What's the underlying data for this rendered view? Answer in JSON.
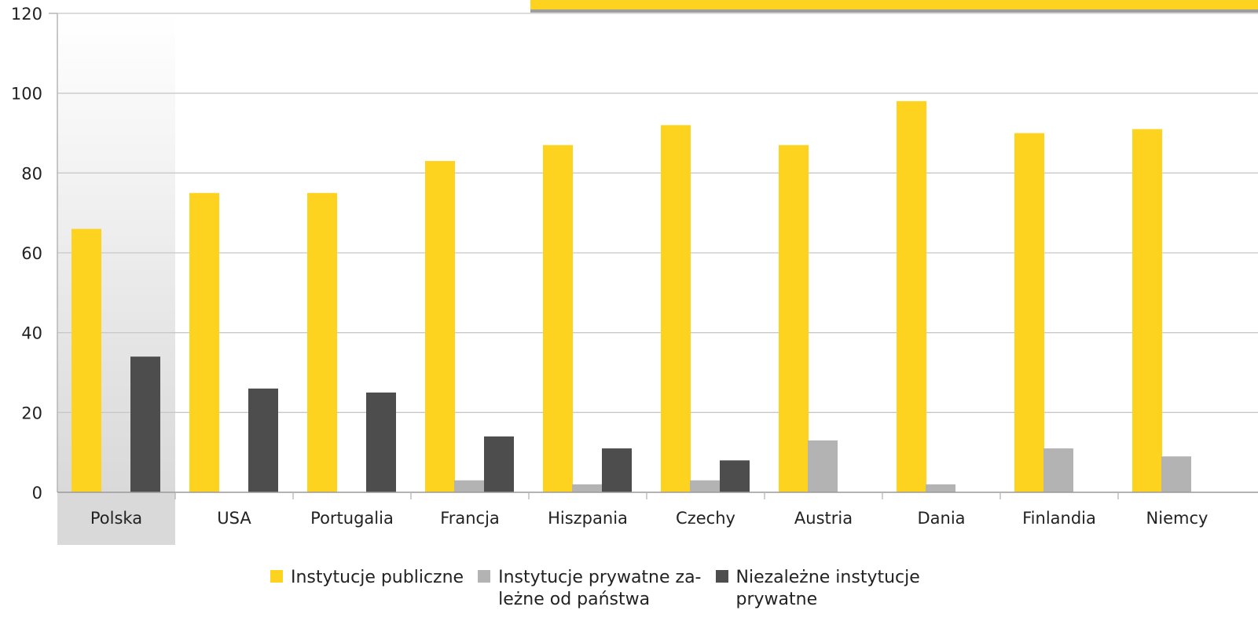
{
  "colors": {
    "series_public": "#FED320",
    "series_private_dependent": "#B3B3B3",
    "series_private_independent": "#4D4D4D",
    "highlight_band": "#D9D9D9",
    "banner": "#FED320",
    "gridline": "#C8C8C8"
  },
  "chart_data": {
    "type": "bar",
    "categories": [
      "Polska",
      "USA",
      "Portugalia",
      "Francja",
      "Hiszpania",
      "Czechy",
      "Austria",
      "Dania",
      "Finlandia",
      "Niemcy"
    ],
    "highlighted_category": "Polska",
    "series": [
      {
        "name": "Instytucje publiczne",
        "values": [
          66,
          75,
          75,
          83,
          87,
          92,
          87,
          98,
          90,
          91
        ]
      },
      {
        "name": "Instytucje prywatne za-\nleżne od państwa",
        "values": [
          0,
          0,
          0,
          3,
          2,
          3,
          13,
          2,
          11,
          9
        ]
      },
      {
        "name": "Niezależne instytucje\nprywatne",
        "values": [
          34,
          26,
          25,
          14,
          11,
          8,
          0,
          0,
          0,
          0
        ]
      }
    ],
    "y_ticks": [
      0,
      20,
      40,
      60,
      80,
      100,
      120
    ],
    "ylim": [
      0,
      120
    ],
    "grid": true,
    "legend_position": "bottom"
  }
}
